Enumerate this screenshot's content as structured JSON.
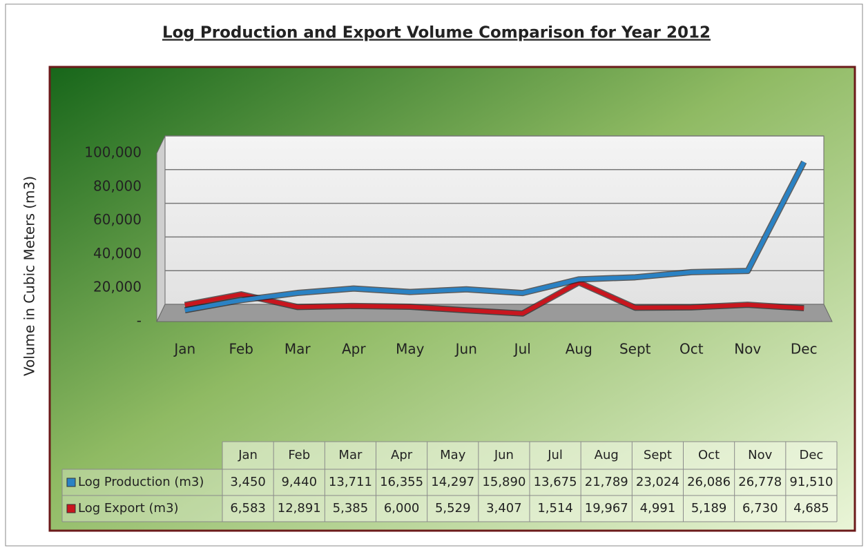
{
  "chart_data": {
    "type": "line",
    "title": "Log Production and Export Volume Comparison for Year 2012",
    "y_label": "Volume in Cubic Meters (m3)",
    "categories": [
      "Jan",
      "Feb",
      "Mar",
      "Apr",
      "May",
      "Jun",
      "Jul",
      "Aug",
      "Sept",
      "Oct",
      "Nov",
      "Dec"
    ],
    "series": [
      {
        "name": "Log Production (m3)",
        "color": "#2a82c4",
        "values": [
          3450,
          9440,
          13711,
          16355,
          14297,
          15890,
          13675,
          21789,
          23024,
          26086,
          26778,
          91510
        ],
        "value_labels": [
          "3,450",
          "9,440",
          "13,711",
          "16,355",
          "14,297",
          "15,890",
          "13,675",
          "21,789",
          "23,024",
          "26,086",
          "26,778",
          "91,510"
        ]
      },
      {
        "name": "Log Export (m3)",
        "color": "#c8161e",
        "values": [
          6583,
          12891,
          5385,
          6000,
          5529,
          3407,
          1514,
          19967,
          4991,
          5189,
          6730,
          4685
        ],
        "value_labels": [
          "6,583",
          "12,891",
          "5,385",
          "6,000",
          "5,529",
          "3,407",
          "1,514",
          "19,967",
          "4,991",
          "5,189",
          "6,730",
          "4,685"
        ]
      }
    ],
    "ylim": [
      0,
      100000
    ],
    "yticks": [
      {
        "value": 0,
        "label": "-"
      },
      {
        "value": 20000,
        "label": "20,000"
      },
      {
        "value": 40000,
        "label": "40,000"
      },
      {
        "value": 60000,
        "label": "60,000"
      },
      {
        "value": 80000,
        "label": "80,000"
      },
      {
        "value": 100000,
        "label": "100,000"
      }
    ],
    "grid": true
  }
}
